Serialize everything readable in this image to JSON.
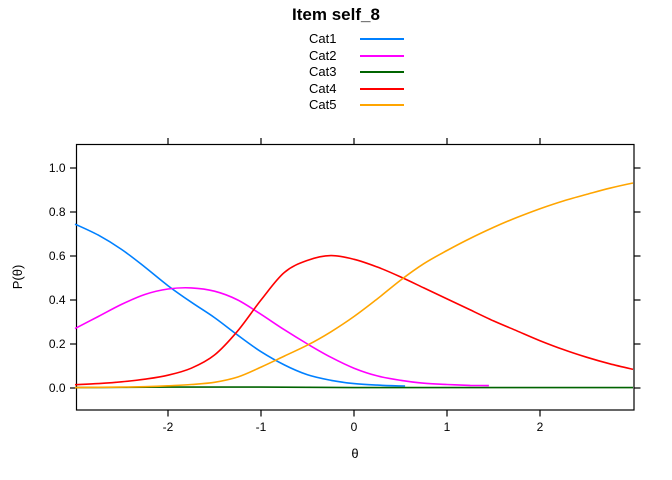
{
  "title": "Item self_8",
  "colors": {
    "background": "#ffffff",
    "axis": "#000000",
    "text": "#000000"
  },
  "chart_data": {
    "type": "line",
    "title": "Item self_8",
    "xlabel": "θ",
    "ylabel": "P(θ)",
    "xlim": [
      -2.98,
      3.01
    ],
    "ylim": [
      -0.1,
      1.1
    ],
    "xticks": [
      -2,
      -1,
      0,
      1,
      2
    ],
    "yticks": [
      0.0,
      0.2,
      0.4,
      0.6,
      0.8,
      1.0
    ],
    "grid": false,
    "legend_position": "top-center",
    "legend_style": "label-then-line",
    "box": true,
    "mirror_ticks": true,
    "series": [
      {
        "name": "Cat1",
        "color": "#0080ff",
        "points": [
          [
            -3,
            0.745
          ],
          [
            -2.75,
            0.695
          ],
          [
            -2.5,
            0.63
          ],
          [
            -2.25,
            0.55
          ],
          [
            -2,
            0.465
          ],
          [
            -1.75,
            0.39
          ],
          [
            -1.5,
            0.32
          ],
          [
            -1.25,
            0.24
          ],
          [
            -1,
            0.165
          ],
          [
            -0.75,
            0.105
          ],
          [
            -0.5,
            0.06
          ],
          [
            -0.25,
            0.035
          ],
          [
            0,
            0.02
          ],
          [
            0.25,
            0.013
          ],
          [
            0.55,
            0.009
          ]
        ]
      },
      {
        "name": "Cat2",
        "color": "#ff00ff",
        "points": [
          [
            -3,
            0.27
          ],
          [
            -2.75,
            0.325
          ],
          [
            -2.5,
            0.38
          ],
          [
            -2.25,
            0.425
          ],
          [
            -2,
            0.45
          ],
          [
            -1.75,
            0.455
          ],
          [
            -1.5,
            0.44
          ],
          [
            -1.25,
            0.4
          ],
          [
            -1,
            0.335
          ],
          [
            -0.75,
            0.265
          ],
          [
            -0.5,
            0.2
          ],
          [
            -0.25,
            0.14
          ],
          [
            0,
            0.09
          ],
          [
            0.25,
            0.055
          ],
          [
            0.5,
            0.035
          ],
          [
            0.75,
            0.022
          ],
          [
            1,
            0.016
          ],
          [
            1.25,
            0.012
          ],
          [
            1.45,
            0.011
          ]
        ]
      },
      {
        "name": "Cat3",
        "color": "#006400",
        "points": [
          [
            -3,
            0.002
          ],
          [
            -2.5,
            0.003
          ],
          [
            -2,
            0.004
          ],
          [
            -1.5,
            0.004
          ],
          [
            -1,
            0.004
          ],
          [
            -0.5,
            0.003
          ],
          [
            0,
            0.002
          ],
          [
            0.5,
            0.002
          ],
          [
            1,
            0.002
          ],
          [
            1.5,
            0.002
          ],
          [
            2,
            0.002
          ],
          [
            2.5,
            0.002
          ],
          [
            3,
            0.002
          ]
        ]
      },
      {
        "name": "Cat4",
        "color": "#ff0000",
        "points": [
          [
            -3,
            0.015
          ],
          [
            -2.75,
            0.02
          ],
          [
            -2.5,
            0.028
          ],
          [
            -2.25,
            0.04
          ],
          [
            -2,
            0.058
          ],
          [
            -1.75,
            0.09
          ],
          [
            -1.5,
            0.15
          ],
          [
            -1.25,
            0.26
          ],
          [
            -1,
            0.4
          ],
          [
            -0.75,
            0.525
          ],
          [
            -0.5,
            0.58
          ],
          [
            -0.25,
            0.602
          ],
          [
            0,
            0.585
          ],
          [
            0.25,
            0.55
          ],
          [
            0.5,
            0.505
          ],
          [
            0.75,
            0.455
          ],
          [
            1,
            0.405
          ],
          [
            1.25,
            0.355
          ],
          [
            1.5,
            0.305
          ],
          [
            1.75,
            0.26
          ],
          [
            2,
            0.215
          ],
          [
            2.25,
            0.175
          ],
          [
            2.5,
            0.14
          ],
          [
            2.75,
            0.11
          ],
          [
            3,
            0.085
          ]
        ]
      },
      {
        "name": "Cat5",
        "color": "#ffa500",
        "points": [
          [
            -3,
            0.002
          ],
          [
            -2.75,
            0.003
          ],
          [
            -2.5,
            0.004
          ],
          [
            -2.25,
            0.006
          ],
          [
            -2,
            0.01
          ],
          [
            -1.75,
            0.016
          ],
          [
            -1.5,
            0.026
          ],
          [
            -1.25,
            0.05
          ],
          [
            -1,
            0.095
          ],
          [
            -0.75,
            0.145
          ],
          [
            -0.5,
            0.195
          ],
          [
            -0.25,
            0.255
          ],
          [
            0,
            0.325
          ],
          [
            0.25,
            0.405
          ],
          [
            0.5,
            0.49
          ],
          [
            0.75,
            0.565
          ],
          [
            1,
            0.625
          ],
          [
            1.25,
            0.68
          ],
          [
            1.5,
            0.73
          ],
          [
            1.75,
            0.775
          ],
          [
            2,
            0.815
          ],
          [
            2.25,
            0.85
          ],
          [
            2.5,
            0.88
          ],
          [
            2.75,
            0.908
          ],
          [
            3,
            0.932
          ]
        ]
      }
    ]
  }
}
